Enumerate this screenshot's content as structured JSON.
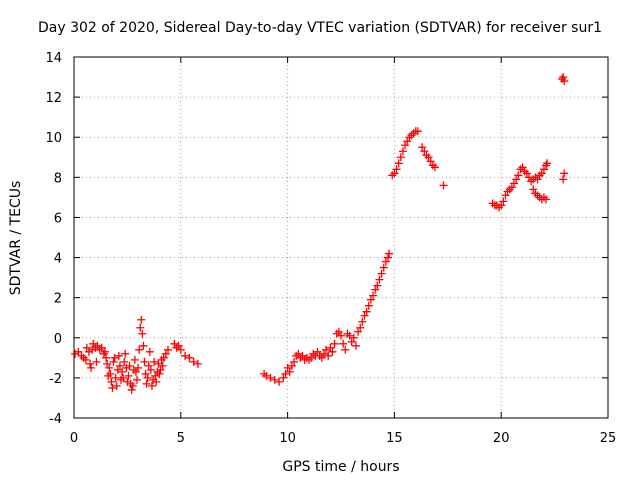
{
  "chart_data": {
    "type": "scatter",
    "title": "Day 302 of 2020, Sidereal Day-to-day VTEC variation (SDTVAR) for receiver sur1",
    "xlabel": "GPS time / hours",
    "ylabel": "SDTVAR / TECUs",
    "xlim": [
      0,
      25
    ],
    "ylim": [
      -4,
      14
    ],
    "xticks": [
      0,
      5,
      10,
      15,
      20,
      25
    ],
    "yticks": [
      -4,
      -2,
      0,
      2,
      4,
      6,
      8,
      10,
      12,
      14
    ],
    "grid": true,
    "marker": "+",
    "marker_color": "#ff0000",
    "series": [
      {
        "name": "sur1",
        "points": [
          [
            0.05,
            -0.8
          ],
          [
            0.2,
            -0.7
          ],
          [
            0.35,
            -0.9
          ],
          [
            0.45,
            -1.0
          ],
          [
            0.55,
            -1.1
          ],
          [
            0.6,
            -0.5
          ],
          [
            0.7,
            -0.7
          ],
          [
            0.75,
            -1.3
          ],
          [
            0.8,
            -1.5
          ],
          [
            0.85,
            -0.6
          ],
          [
            0.9,
            -0.3
          ],
          [
            1.0,
            -0.5
          ],
          [
            1.05,
            -1.2
          ],
          [
            1.1,
            -0.4
          ],
          [
            1.2,
            -0.6
          ],
          [
            1.3,
            -0.5
          ],
          [
            1.4,
            -0.8
          ],
          [
            1.45,
            -0.7
          ],
          [
            1.5,
            -1.0
          ],
          [
            1.55,
            -1.3
          ],
          [
            1.6,
            -1.9
          ],
          [
            1.65,
            -1.5
          ],
          [
            1.7,
            -1.8
          ],
          [
            1.75,
            -2.2
          ],
          [
            1.8,
            -2.5
          ],
          [
            1.85,
            -1.2
          ],
          [
            1.9,
            -1.0
          ],
          [
            1.95,
            -2.0
          ],
          [
            2.0,
            -2.4
          ],
          [
            2.05,
            -1.6
          ],
          [
            2.1,
            -0.9
          ],
          [
            2.15,
            -1.4
          ],
          [
            2.2,
            -2.1
          ],
          [
            2.25,
            -1.7
          ],
          [
            2.3,
            -2.0
          ],
          [
            2.35,
            -1.2
          ],
          [
            2.4,
            -0.8
          ],
          [
            2.45,
            -1.5
          ],
          [
            2.5,
            -2.2
          ],
          [
            2.55,
            -1.9
          ],
          [
            2.6,
            -1.4
          ],
          [
            2.65,
            -2.3
          ],
          [
            2.7,
            -2.6
          ],
          [
            2.75,
            -2.4
          ],
          [
            2.8,
            -1.6
          ],
          [
            2.85,
            -1.1
          ],
          [
            2.9,
            -1.7
          ],
          [
            2.95,
            -2.1
          ],
          [
            3.0,
            -1.5
          ],
          [
            3.05,
            -0.6
          ],
          [
            3.1,
            0.5
          ],
          [
            3.15,
            0.9
          ],
          [
            3.2,
            0.2
          ],
          [
            3.25,
            -0.4
          ],
          [
            3.3,
            -1.2
          ],
          [
            3.35,
            -1.8
          ],
          [
            3.4,
            -2.3
          ],
          [
            3.45,
            -2.0
          ],
          [
            3.5,
            -1.4
          ],
          [
            3.55,
            -0.7
          ],
          [
            3.6,
            -1.6
          ],
          [
            3.65,
            -2.4
          ],
          [
            3.7,
            -2.1
          ],
          [
            3.75,
            -1.2
          ],
          [
            3.8,
            -1.9
          ],
          [
            3.85,
            -2.2
          ],
          [
            3.9,
            -1.7
          ],
          [
            3.95,
            -1.3
          ],
          [
            4.0,
            -1.8
          ],
          [
            4.05,
            -1.6
          ],
          [
            4.1,
            -1.1
          ],
          [
            4.15,
            -1.4
          ],
          [
            4.2,
            -1.0
          ],
          [
            4.3,
            -0.8
          ],
          [
            4.4,
            -0.6
          ],
          [
            4.7,
            -0.3
          ],
          [
            4.8,
            -0.5
          ],
          [
            4.9,
            -0.4
          ],
          [
            5.0,
            -0.6
          ],
          [
            5.2,
            -0.9
          ],
          [
            5.4,
            -1.0
          ],
          [
            5.6,
            -1.2
          ],
          [
            5.8,
            -1.3
          ],
          [
            8.9,
            -1.8
          ],
          [
            9.0,
            -1.9
          ],
          [
            9.2,
            -2.0
          ],
          [
            9.4,
            -2.1
          ],
          [
            9.6,
            -2.2
          ],
          [
            9.8,
            -2.0
          ],
          [
            9.9,
            -1.8
          ],
          [
            10.0,
            -1.5
          ],
          [
            10.1,
            -1.7
          ],
          [
            10.2,
            -1.4
          ],
          [
            10.3,
            -1.2
          ],
          [
            10.4,
            -0.9
          ],
          [
            10.5,
            -0.8
          ],
          [
            10.6,
            -1.0
          ],
          [
            10.7,
            -0.9
          ],
          [
            10.8,
            -1.1
          ],
          [
            10.9,
            -1.0
          ],
          [
            11.0,
            -1.1
          ],
          [
            11.1,
            -1.0
          ],
          [
            11.2,
            -0.8
          ],
          [
            11.3,
            -0.9
          ],
          [
            11.4,
            -0.7
          ],
          [
            11.5,
            -0.9
          ],
          [
            11.6,
            -1.0
          ],
          [
            11.7,
            -0.8
          ],
          [
            11.8,
            -0.6
          ],
          [
            11.9,
            -0.9
          ],
          [
            12.0,
            -0.5
          ],
          [
            12.1,
            -0.7
          ],
          [
            12.2,
            -0.3
          ],
          [
            12.3,
            0.2
          ],
          [
            12.4,
            0.3
          ],
          [
            12.5,
            0.1
          ],
          [
            12.6,
            -0.3
          ],
          [
            12.7,
            -0.6
          ],
          [
            12.8,
            0.2
          ],
          [
            12.9,
            0.1
          ],
          [
            13.0,
            -0.2
          ],
          [
            13.1,
            0.0
          ],
          [
            13.2,
            -0.4
          ],
          [
            13.3,
            0.3
          ],
          [
            13.4,
            0.5
          ],
          [
            13.5,
            0.8
          ],
          [
            13.6,
            1.1
          ],
          [
            13.7,
            1.3
          ],
          [
            13.8,
            1.6
          ],
          [
            13.9,
            1.9
          ],
          [
            14.0,
            2.1
          ],
          [
            14.1,
            2.4
          ],
          [
            14.2,
            2.6
          ],
          [
            14.3,
            2.9
          ],
          [
            14.4,
            3.2
          ],
          [
            14.5,
            3.5
          ],
          [
            14.6,
            3.8
          ],
          [
            14.7,
            4.0
          ],
          [
            14.75,
            4.2
          ],
          [
            14.9,
            8.1
          ],
          [
            15.0,
            8.2
          ],
          [
            15.1,
            8.4
          ],
          [
            15.2,
            8.7
          ],
          [
            15.3,
            9.0
          ],
          [
            15.4,
            9.3
          ],
          [
            15.5,
            9.6
          ],
          [
            15.6,
            9.8
          ],
          [
            15.7,
            10.0
          ],
          [
            15.8,
            10.1
          ],
          [
            15.9,
            10.2
          ],
          [
            16.0,
            10.3
          ],
          [
            16.1,
            10.3
          ],
          [
            16.3,
            9.5
          ],
          [
            16.4,
            9.3
          ],
          [
            16.5,
            9.1
          ],
          [
            16.6,
            9.0
          ],
          [
            16.7,
            8.8
          ],
          [
            16.8,
            8.6
          ],
          [
            16.9,
            8.5
          ],
          [
            17.3,
            7.6
          ],
          [
            19.6,
            6.7
          ],
          [
            19.7,
            6.6
          ],
          [
            19.8,
            6.6
          ],
          [
            19.9,
            6.5
          ],
          [
            20.0,
            6.6
          ],
          [
            20.1,
            6.8
          ],
          [
            20.2,
            7.1
          ],
          [
            20.3,
            7.3
          ],
          [
            20.4,
            7.4
          ],
          [
            20.5,
            7.5
          ],
          [
            20.6,
            7.7
          ],
          [
            20.7,
            7.9
          ],
          [
            20.8,
            8.1
          ],
          [
            20.9,
            8.4
          ],
          [
            21.0,
            8.5
          ],
          [
            21.1,
            8.3
          ],
          [
            21.2,
            8.2
          ],
          [
            21.3,
            8.0
          ],
          [
            21.4,
            7.8
          ],
          [
            21.5,
            7.9
          ],
          [
            21.6,
            8.0
          ],
          [
            21.7,
            7.9
          ],
          [
            21.8,
            8.1
          ],
          [
            21.9,
            8.2
          ],
          [
            22.0,
            8.4
          ],
          [
            22.1,
            8.6
          ],
          [
            22.15,
            8.7
          ],
          [
            21.5,
            7.4
          ],
          [
            21.6,
            7.2
          ],
          [
            21.7,
            7.1
          ],
          [
            21.8,
            7.0
          ],
          [
            21.9,
            6.9
          ],
          [
            22.0,
            7.0
          ],
          [
            22.1,
            6.9
          ],
          [
            22.9,
            7.9
          ],
          [
            22.95,
            8.2
          ],
          [
            22.85,
            12.9
          ],
          [
            22.9,
            13.0
          ],
          [
            22.95,
            12.8
          ]
        ]
      }
    ]
  }
}
